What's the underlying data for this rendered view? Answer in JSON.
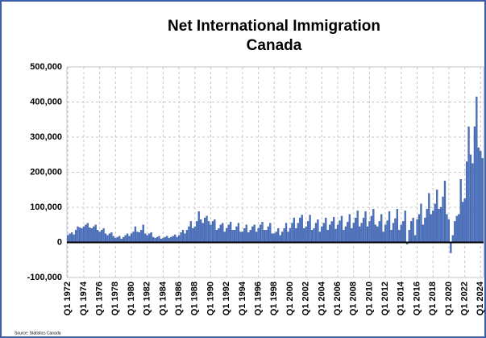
{
  "chart_data": {
    "type": "bar",
    "title": "Net International Immigration",
    "subtitle": "Canada",
    "source": "Source: Statistics Canada",
    "categories": [
      "Q1 1972",
      null,
      null,
      null,
      null,
      null,
      null,
      null,
      "Q1 1974",
      null,
      null,
      null,
      null,
      null,
      null,
      null,
      "Q1 1976",
      null,
      null,
      null,
      null,
      null,
      null,
      null,
      "Q1 1978",
      null,
      null,
      null,
      null,
      null,
      null,
      null,
      "Q1 1980",
      null,
      null,
      null,
      null,
      null,
      null,
      null,
      "Q1 1982",
      null,
      null,
      null,
      null,
      null,
      null,
      null,
      "Q1 1984",
      null,
      null,
      null,
      null,
      null,
      null,
      null,
      "Q1 1986",
      null,
      null,
      null,
      null,
      null,
      null,
      null,
      "Q1 1988",
      null,
      null,
      null,
      null,
      null,
      null,
      null,
      "Q1 1990",
      null,
      null,
      null,
      null,
      null,
      null,
      null,
      "Q1 1992",
      null,
      null,
      null,
      null,
      null,
      null,
      null,
      "Q1 1994",
      null,
      null,
      null,
      null,
      null,
      null,
      null,
      "Q1 1996",
      null,
      null,
      null,
      null,
      null,
      null,
      null,
      "Q1 1998",
      null,
      null,
      null,
      null,
      null,
      null,
      null,
      "Q1 2000",
      null,
      null,
      null,
      null,
      null,
      null,
      null,
      "Q1 2002",
      null,
      null,
      null,
      null,
      null,
      null,
      null,
      "Q1 2004",
      null,
      null,
      null,
      null,
      null,
      null,
      null,
      "Q1 2006",
      null,
      null,
      null,
      null,
      null,
      null,
      null,
      "Q1 2008",
      null,
      null,
      null,
      null,
      null,
      null,
      null,
      "Q1 2010",
      null,
      null,
      null,
      null,
      null,
      null,
      null,
      "Q1 2012",
      null,
      null,
      null,
      null,
      null,
      null,
      null,
      "Q1 2014",
      null,
      null,
      null,
      null,
      null,
      null,
      null,
      "Q1 2016",
      null,
      null,
      null,
      null,
      null,
      null,
      null,
      "Q1 2018",
      null,
      null,
      null,
      null,
      null,
      null,
      null,
      "Q1 2020",
      null,
      null,
      null,
      null,
      null,
      null,
      null,
      "Q1 2022",
      null,
      null,
      null,
      null,
      null,
      null,
      null,
      "Q1 2024",
      null
    ],
    "values": [
      20000,
      25000,
      28000,
      22000,
      35000,
      45000,
      42000,
      40000,
      45000,
      50000,
      55000,
      42000,
      40000,
      45000,
      50000,
      35000,
      30000,
      35000,
      40000,
      25000,
      20000,
      25000,
      28000,
      18000,
      12000,
      15000,
      18000,
      10000,
      15000,
      20000,
      25000,
      18000,
      25000,
      30000,
      45000,
      30000,
      28000,
      35000,
      50000,
      25000,
      20000,
      25000,
      28000,
      15000,
      12000,
      15000,
      18000,
      10000,
      12000,
      15000,
      18000,
      12000,
      15000,
      18000,
      22000,
      15000,
      20000,
      28000,
      35000,
      25000,
      35000,
      45000,
      60000,
      40000,
      45000,
      60000,
      88000,
      65000,
      55000,
      70000,
      75000,
      60000,
      50000,
      60000,
      65000,
      35000,
      40000,
      50000,
      55000,
      30000,
      40000,
      50000,
      58000,
      35000,
      35000,
      45000,
      55000,
      30000,
      30000,
      40000,
      50000,
      28000,
      35000,
      45000,
      50000,
      30000,
      40000,
      50000,
      58000,
      35000,
      35000,
      45000,
      55000,
      25000,
      25000,
      30000,
      40000,
      20000,
      30000,
      40000,
      55000,
      30000,
      40000,
      55000,
      70000,
      40000,
      55000,
      70000,
      78000,
      40000,
      45000,
      60000,
      78000,
      35000,
      40000,
      55000,
      65000,
      30000,
      45000,
      55000,
      70000,
      35000,
      50000,
      60000,
      72000,
      38000,
      50000,
      62000,
      75000,
      35000,
      45000,
      58000,
      80000,
      40000,
      55000,
      70000,
      90000,
      45000,
      55000,
      70000,
      88000,
      45000,
      60000,
      75000,
      95000,
      50000,
      45000,
      60000,
      80000,
      30000,
      50000,
      62000,
      88000,
      35000,
      55000,
      68000,
      95000,
      35000,
      50000,
      60000,
      90000,
      -5000,
      35000,
      60000,
      70000,
      20000,
      65000,
      80000,
      110000,
      50000,
      70000,
      95000,
      140000,
      80000,
      90000,
      110000,
      150000,
      95000,
      100000,
      130000,
      175000,
      80000,
      65000,
      -30000,
      20000,
      60000,
      75000,
      80000,
      180000,
      115000,
      125000,
      230000,
      330000,
      250000,
      225000,
      330000,
      415000,
      270000,
      260000,
      240000
    ],
    "color": "#4a72c0",
    "ylim": [
      -100000,
      500000
    ],
    "yticks": [
      {
        "value": -100000,
        "label": "-100,000"
      },
      0,
      {
        "value": 100000,
        "label": "100,000"
      },
      {
        "value": 200000,
        "label": "200,000"
      },
      {
        "value": 300000,
        "label": "300,000"
      },
      {
        "value": 400000,
        "label": "400,000"
      },
      {
        "value": 500000,
        "label": "500,000"
      }
    ],
    "grid": true
  }
}
